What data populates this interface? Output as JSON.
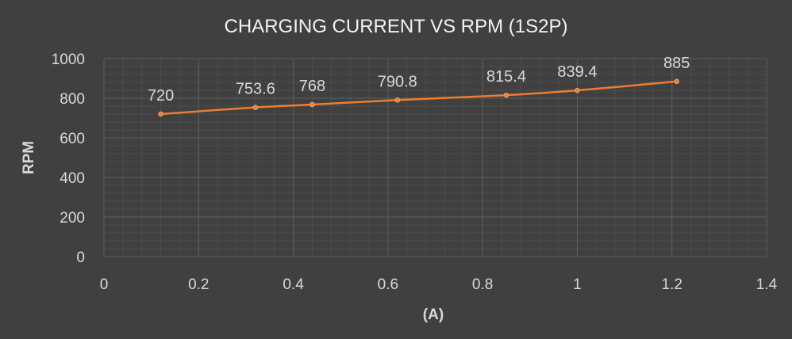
{
  "chart_data": {
    "type": "scatter",
    "title": "CHARGING CURRENT VS RPM (1S2P)",
    "xlabel": "(A)",
    "ylabel": "RPM",
    "xlim": [
      0,
      1.4
    ],
    "ylim": [
      0,
      1000
    ],
    "x_ticks": [
      "0",
      "0.2",
      "0.4",
      "0.6",
      "0.8",
      "1",
      "1.2",
      "1.4"
    ],
    "y_ticks": [
      "0",
      "200",
      "400",
      "600",
      "800",
      "1000"
    ],
    "grid": true,
    "legend": "none",
    "line_style": "smooth",
    "series": [
      {
        "color": "#ed7d31",
        "x": [
          0.12,
          0.32,
          0.44,
          0.62,
          0.85,
          1.0,
          1.21
        ],
        "y": [
          720,
          753.6,
          768,
          790.8,
          815.4,
          839.4,
          885
        ],
        "labels": [
          "720",
          "753.6",
          "768",
          "790.8",
          "815.4",
          "839.4",
          "885"
        ]
      }
    ]
  }
}
